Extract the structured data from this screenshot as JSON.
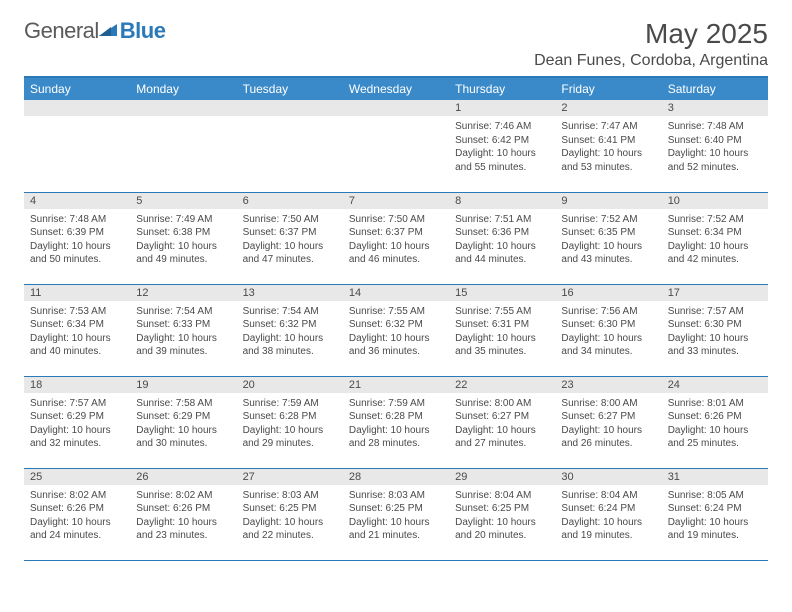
{
  "brand": {
    "part1": "General",
    "part2": "Blue"
  },
  "title": "May 2025",
  "location": "Dean Funes, Cordoba, Argentina",
  "colors": {
    "header_bg": "#3a8ac9",
    "border": "#2a7ab9",
    "daynum_bg": "#e8e8e8",
    "text": "#4a4a4a",
    "brand_gray": "#5a5a5a",
    "brand_blue": "#2a7ab9",
    "page_bg": "#ffffff"
  },
  "headers": [
    "Sunday",
    "Monday",
    "Tuesday",
    "Wednesday",
    "Thursday",
    "Friday",
    "Saturday"
  ],
  "weeks": [
    [
      {
        "n": "",
        "sr": "",
        "ss": "",
        "dl": ""
      },
      {
        "n": "",
        "sr": "",
        "ss": "",
        "dl": ""
      },
      {
        "n": "",
        "sr": "",
        "ss": "",
        "dl": ""
      },
      {
        "n": "",
        "sr": "",
        "ss": "",
        "dl": ""
      },
      {
        "n": "1",
        "sr": "Sunrise: 7:46 AM",
        "ss": "Sunset: 6:42 PM",
        "dl": "Daylight: 10 hours and 55 minutes."
      },
      {
        "n": "2",
        "sr": "Sunrise: 7:47 AM",
        "ss": "Sunset: 6:41 PM",
        "dl": "Daylight: 10 hours and 53 minutes."
      },
      {
        "n": "3",
        "sr": "Sunrise: 7:48 AM",
        "ss": "Sunset: 6:40 PM",
        "dl": "Daylight: 10 hours and 52 minutes."
      }
    ],
    [
      {
        "n": "4",
        "sr": "Sunrise: 7:48 AM",
        "ss": "Sunset: 6:39 PM",
        "dl": "Daylight: 10 hours and 50 minutes."
      },
      {
        "n": "5",
        "sr": "Sunrise: 7:49 AM",
        "ss": "Sunset: 6:38 PM",
        "dl": "Daylight: 10 hours and 49 minutes."
      },
      {
        "n": "6",
        "sr": "Sunrise: 7:50 AM",
        "ss": "Sunset: 6:37 PM",
        "dl": "Daylight: 10 hours and 47 minutes."
      },
      {
        "n": "7",
        "sr": "Sunrise: 7:50 AM",
        "ss": "Sunset: 6:37 PM",
        "dl": "Daylight: 10 hours and 46 minutes."
      },
      {
        "n": "8",
        "sr": "Sunrise: 7:51 AM",
        "ss": "Sunset: 6:36 PM",
        "dl": "Daylight: 10 hours and 44 minutes."
      },
      {
        "n": "9",
        "sr": "Sunrise: 7:52 AM",
        "ss": "Sunset: 6:35 PM",
        "dl": "Daylight: 10 hours and 43 minutes."
      },
      {
        "n": "10",
        "sr": "Sunrise: 7:52 AM",
        "ss": "Sunset: 6:34 PM",
        "dl": "Daylight: 10 hours and 42 minutes."
      }
    ],
    [
      {
        "n": "11",
        "sr": "Sunrise: 7:53 AM",
        "ss": "Sunset: 6:34 PM",
        "dl": "Daylight: 10 hours and 40 minutes."
      },
      {
        "n": "12",
        "sr": "Sunrise: 7:54 AM",
        "ss": "Sunset: 6:33 PM",
        "dl": "Daylight: 10 hours and 39 minutes."
      },
      {
        "n": "13",
        "sr": "Sunrise: 7:54 AM",
        "ss": "Sunset: 6:32 PM",
        "dl": "Daylight: 10 hours and 38 minutes."
      },
      {
        "n": "14",
        "sr": "Sunrise: 7:55 AM",
        "ss": "Sunset: 6:32 PM",
        "dl": "Daylight: 10 hours and 36 minutes."
      },
      {
        "n": "15",
        "sr": "Sunrise: 7:55 AM",
        "ss": "Sunset: 6:31 PM",
        "dl": "Daylight: 10 hours and 35 minutes."
      },
      {
        "n": "16",
        "sr": "Sunrise: 7:56 AM",
        "ss": "Sunset: 6:30 PM",
        "dl": "Daylight: 10 hours and 34 minutes."
      },
      {
        "n": "17",
        "sr": "Sunrise: 7:57 AM",
        "ss": "Sunset: 6:30 PM",
        "dl": "Daylight: 10 hours and 33 minutes."
      }
    ],
    [
      {
        "n": "18",
        "sr": "Sunrise: 7:57 AM",
        "ss": "Sunset: 6:29 PM",
        "dl": "Daylight: 10 hours and 32 minutes."
      },
      {
        "n": "19",
        "sr": "Sunrise: 7:58 AM",
        "ss": "Sunset: 6:29 PM",
        "dl": "Daylight: 10 hours and 30 minutes."
      },
      {
        "n": "20",
        "sr": "Sunrise: 7:59 AM",
        "ss": "Sunset: 6:28 PM",
        "dl": "Daylight: 10 hours and 29 minutes."
      },
      {
        "n": "21",
        "sr": "Sunrise: 7:59 AM",
        "ss": "Sunset: 6:28 PM",
        "dl": "Daylight: 10 hours and 28 minutes."
      },
      {
        "n": "22",
        "sr": "Sunrise: 8:00 AM",
        "ss": "Sunset: 6:27 PM",
        "dl": "Daylight: 10 hours and 27 minutes."
      },
      {
        "n": "23",
        "sr": "Sunrise: 8:00 AM",
        "ss": "Sunset: 6:27 PM",
        "dl": "Daylight: 10 hours and 26 minutes."
      },
      {
        "n": "24",
        "sr": "Sunrise: 8:01 AM",
        "ss": "Sunset: 6:26 PM",
        "dl": "Daylight: 10 hours and 25 minutes."
      }
    ],
    [
      {
        "n": "25",
        "sr": "Sunrise: 8:02 AM",
        "ss": "Sunset: 6:26 PM",
        "dl": "Daylight: 10 hours and 24 minutes."
      },
      {
        "n": "26",
        "sr": "Sunrise: 8:02 AM",
        "ss": "Sunset: 6:26 PM",
        "dl": "Daylight: 10 hours and 23 minutes."
      },
      {
        "n": "27",
        "sr": "Sunrise: 8:03 AM",
        "ss": "Sunset: 6:25 PM",
        "dl": "Daylight: 10 hours and 22 minutes."
      },
      {
        "n": "28",
        "sr": "Sunrise: 8:03 AM",
        "ss": "Sunset: 6:25 PM",
        "dl": "Daylight: 10 hours and 21 minutes."
      },
      {
        "n": "29",
        "sr": "Sunrise: 8:04 AM",
        "ss": "Sunset: 6:25 PM",
        "dl": "Daylight: 10 hours and 20 minutes."
      },
      {
        "n": "30",
        "sr": "Sunrise: 8:04 AM",
        "ss": "Sunset: 6:24 PM",
        "dl": "Daylight: 10 hours and 19 minutes."
      },
      {
        "n": "31",
        "sr": "Sunrise: 8:05 AM",
        "ss": "Sunset: 6:24 PM",
        "dl": "Daylight: 10 hours and 19 minutes."
      }
    ]
  ]
}
